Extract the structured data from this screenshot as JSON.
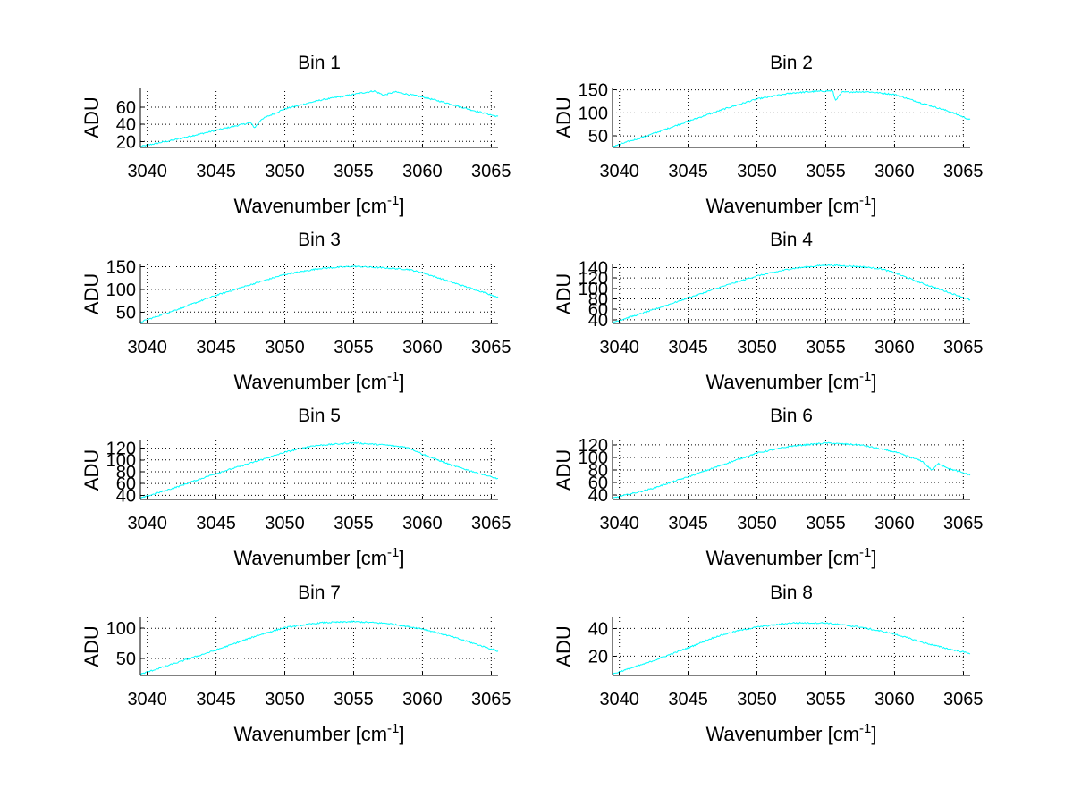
{
  "series_color": "#00ffff",
  "chart_data": [
    {
      "type": "line",
      "title": "Bin 1",
      "xlabel": "Wavenumber [cm",
      "xlabel_sup": "-1",
      "xlabel_end": "]",
      "ylabel": "ADU",
      "xlim": [
        3039.5,
        3065.5
      ],
      "ylim": [
        13,
        83
      ],
      "xticks": [
        3040,
        3045,
        3050,
        3055,
        3060,
        3065
      ],
      "yticks": [
        20,
        40,
        60
      ],
      "x": [
        3039.5,
        3042,
        3045,
        3047.5,
        3047.8,
        3048.3,
        3050,
        3052.5,
        3055,
        3056.5,
        3057.2,
        3058,
        3060,
        3062,
        3063.5,
        3065.5
      ],
      "values": [
        14,
        22,
        33,
        42,
        36,
        46,
        58,
        68,
        75,
        79,
        74,
        78,
        72,
        64,
        57,
        49
      ],
      "annotations": []
    },
    {
      "type": "line",
      "title": "Bin 2",
      "xlabel": "Wavenumber [cm",
      "xlabel_sup": "-1",
      "xlabel_end": "]",
      "ylabel": "ADU",
      "xlim": [
        3039.5,
        3065.5
      ],
      "ylim": [
        25,
        155
      ],
      "xticks": [
        3040,
        3045,
        3050,
        3055,
        3060,
        3065
      ],
      "yticks": [
        50,
        100,
        150
      ],
      "x": [
        3039.5,
        3042,
        3045,
        3048,
        3050,
        3052.5,
        3054,
        3055.5,
        3055.7,
        3056.2,
        3058,
        3060,
        3062,
        3064,
        3065.5
      ],
      "values": [
        27,
        50,
        82,
        112,
        130,
        143,
        146,
        148,
        127,
        145,
        146,
        140,
        121,
        103,
        85
      ],
      "annotations": []
    },
    {
      "type": "line",
      "title": "Bin 3",
      "xlabel": "Wavenumber [cm",
      "xlabel_sup": "-1",
      "xlabel_end": "]",
      "ylabel": "ADU",
      "xlim": [
        3039.5,
        3065.5
      ],
      "ylim": [
        25,
        155
      ],
      "xticks": [
        3040,
        3045,
        3050,
        3055,
        3060,
        3065
      ],
      "yticks": [
        50,
        100,
        150
      ],
      "x": [
        3039.5,
        3042,
        3045,
        3048,
        3050,
        3052.5,
        3055,
        3057.5,
        3059,
        3060,
        3062,
        3064,
        3065.5
      ],
      "values": [
        28,
        54,
        87,
        115,
        133,
        146,
        151,
        147,
        144,
        137,
        117,
        98,
        83
      ],
      "annotations": []
    },
    {
      "type": "line",
      "title": "Bin 4",
      "xlabel": "Wavenumber [cm",
      "xlabel_sup": "-1",
      "xlabel_end": "]",
      "ylabel": "ADU",
      "xlim": [
        3039.5,
        3065.5
      ],
      "ylim": [
        33,
        146
      ],
      "xticks": [
        3040,
        3045,
        3050,
        3055,
        3060,
        3065
      ],
      "yticks": [
        40,
        60,
        80,
        100,
        120,
        140
      ],
      "x": [
        3039.5,
        3042,
        3045,
        3048,
        3050,
        3052.5,
        3055,
        3057.5,
        3059,
        3060,
        3062,
        3064,
        3065.5
      ],
      "values": [
        35,
        55,
        82,
        108,
        124,
        138,
        145,
        142,
        138,
        130,
        110,
        92,
        78
      ],
      "annotations": []
    },
    {
      "type": "line",
      "title": "Bin 5",
      "xlabel": "Wavenumber [cm",
      "xlabel_sup": "-1",
      "xlabel_end": "]",
      "ylabel": "ADU",
      "xlim": [
        3039.5,
        3065.5
      ],
      "ylim": [
        33,
        133
      ],
      "xticks": [
        3040,
        3045,
        3050,
        3055,
        3060,
        3065
      ],
      "yticks": [
        40,
        60,
        80,
        100,
        120
      ],
      "x": [
        3039.5,
        3042,
        3045,
        3048,
        3050,
        3052,
        3055,
        3057.5,
        3059,
        3060,
        3062,
        3064,
        3065.5
      ],
      "values": [
        35,
        53,
        77,
        98,
        113,
        124,
        129,
        125,
        121,
        110,
        92,
        78,
        68
      ],
      "annotations": []
    },
    {
      "type": "line",
      "title": "Bin 6",
      "xlabel": "Wavenumber [cm",
      "xlabel_sup": "-1",
      "xlabel_end": "]",
      "ylabel": "ADU",
      "xlim": [
        3039.5,
        3065.5
      ],
      "ylim": [
        33,
        127
      ],
      "xticks": [
        3040,
        3045,
        3050,
        3055,
        3060,
        3065
      ],
      "yticks": [
        40,
        60,
        80,
        100,
        120
      ],
      "x": [
        3039.5,
        3042,
        3045,
        3048,
        3050,
        3052.5,
        3055,
        3057.5,
        3060,
        3062,
        3062.7,
        3063.2,
        3064,
        3065.5
      ],
      "values": [
        35,
        48,
        69,
        92,
        107,
        118,
        123,
        120,
        109,
        94,
        80,
        90,
        82,
        72
      ],
      "annotations": []
    },
    {
      "type": "line",
      "title": "Bin 7",
      "xlabel": "Wavenumber [cm",
      "xlabel_sup": "-1",
      "xlabel_end": "]",
      "ylabel": "ADU",
      "xlim": [
        3039.5,
        3065.5
      ],
      "ylim": [
        22,
        118
      ],
      "xticks": [
        3040,
        3045,
        3050,
        3055,
        3060,
        3065
      ],
      "yticks": [
        50,
        100
      ],
      "x": [
        3039.5,
        3042,
        3045,
        3048,
        3050,
        3052.5,
        3055,
        3057.5,
        3060,
        3062,
        3064,
        3065.5
      ],
      "values": [
        24,
        42,
        64,
        88,
        101,
        109,
        111,
        108,
        99,
        87,
        73,
        62
      ],
      "annotations": []
    },
    {
      "type": "line",
      "title": "Bin 8",
      "xlabel": "Wavenumber [cm",
      "xlabel_sup": "-1",
      "xlabel_end": "]",
      "ylabel": "ADU",
      "xlim": [
        3039.5,
        3065.5
      ],
      "ylim": [
        6,
        48
      ],
      "xticks": [
        3040,
        3045,
        3050,
        3055,
        3060,
        3065
      ],
      "yticks": [
        20,
        40
      ],
      "x": [
        3039.5,
        3042,
        3045,
        3047,
        3048.5,
        3050,
        3052.5,
        3055,
        3057.5,
        3060,
        3062,
        3064,
        3065.5
      ],
      "values": [
        7,
        15,
        26,
        34,
        38,
        41,
        44,
        44,
        41,
        36,
        30,
        25,
        22
      ],
      "annotations": []
    }
  ]
}
